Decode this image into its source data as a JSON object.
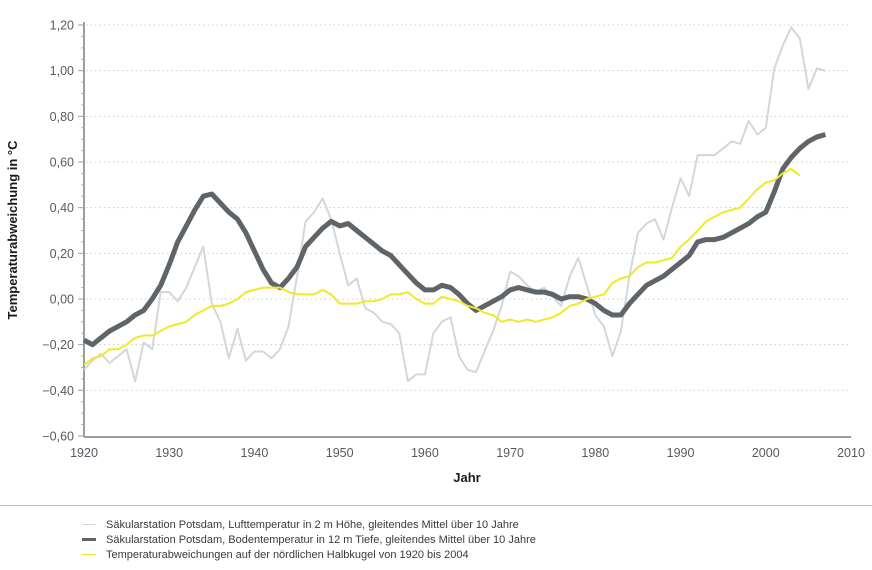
{
  "chart_data": {
    "type": "line",
    "title": "",
    "xlabel": "Jahr",
    "ylabel": "Temperaturabweichung in °C",
    "xlim": [
      1920,
      2010
    ],
    "ylim": [
      -0.6,
      1.2
    ],
    "grid": "horizontal-dotted",
    "legend_position": "bottom",
    "x_ticks": [
      "1920",
      "1930",
      "1940",
      "1950",
      "1960",
      "1970",
      "1980",
      "1990",
      "2000",
      "2010"
    ],
    "x_tick_values": [
      1920,
      1930,
      1940,
      1950,
      1960,
      1970,
      1980,
      1990,
      2000,
      2010
    ],
    "y_ticks": [
      "1,20",
      "1,00",
      "0,80",
      "0,60",
      "0,40",
      "0,20",
      "0,00",
      "−0,20",
      "−0,40",
      "−0,60"
    ],
    "y_tick_values": [
      1.2,
      1.0,
      0.8,
      0.6,
      0.4,
      0.2,
      0.0,
      -0.2,
      -0.4,
      -0.6
    ],
    "series": [
      {
        "name": "Säkularstation Potsdam, Lufttemperatur in 2 m Höhe, gleitendes Mittel über 10 Jahre",
        "color": "#d3d6da",
        "width": 2,
        "points": [
          [
            1920,
            -0.31
          ],
          [
            1921,
            -0.27
          ],
          [
            1922,
            -0.24
          ],
          [
            1923,
            -0.28
          ],
          [
            1924,
            -0.25
          ],
          [
            1925,
            -0.22
          ],
          [
            1926,
            -0.36
          ],
          [
            1927,
            -0.19
          ],
          [
            1928,
            -0.22
          ],
          [
            1929,
            0.03
          ],
          [
            1930,
            0.03
          ],
          [
            1931,
            -0.01
          ],
          [
            1932,
            0.05
          ],
          [
            1933,
            0.14
          ],
          [
            1934,
            0.23
          ],
          [
            1935,
            -0.02
          ],
          [
            1936,
            -0.1
          ],
          [
            1937,
            -0.26
          ],
          [
            1938,
            -0.13
          ],
          [
            1939,
            -0.27
          ],
          [
            1940,
            -0.23
          ],
          [
            1941,
            -0.23
          ],
          [
            1942,
            -0.26
          ],
          [
            1943,
            -0.22
          ],
          [
            1944,
            -0.12
          ],
          [
            1945,
            0.1
          ],
          [
            1946,
            0.34
          ],
          [
            1947,
            0.38
          ],
          [
            1948,
            0.44
          ],
          [
            1949,
            0.35
          ],
          [
            1950,
            0.2
          ],
          [
            1951,
            0.06
          ],
          [
            1952,
            0.09
          ],
          [
            1953,
            -0.04
          ],
          [
            1954,
            -0.06
          ],
          [
            1955,
            -0.1
          ],
          [
            1956,
            -0.11
          ],
          [
            1957,
            -0.15
          ],
          [
            1958,
            -0.36
          ],
          [
            1959,
            -0.33
          ],
          [
            1960,
            -0.33
          ],
          [
            1961,
            -0.15
          ],
          [
            1962,
            -0.1
          ],
          [
            1963,
            -0.08
          ],
          [
            1964,
            -0.25
          ],
          [
            1965,
            -0.31
          ],
          [
            1966,
            -0.32
          ],
          [
            1967,
            -0.23
          ],
          [
            1968,
            -0.14
          ],
          [
            1969,
            -0.03
          ],
          [
            1970,
            0.12
          ],
          [
            1971,
            0.1
          ],
          [
            1972,
            0.06
          ],
          [
            1973,
            0.03
          ],
          [
            1974,
            0.05
          ],
          [
            1975,
            0.01
          ],
          [
            1976,
            -0.03
          ],
          [
            1977,
            0.1
          ],
          [
            1978,
            0.18
          ],
          [
            1979,
            0.06
          ],
          [
            1980,
            -0.07
          ],
          [
            1981,
            -0.12
          ],
          [
            1982,
            -0.25
          ],
          [
            1983,
            -0.14
          ],
          [
            1984,
            0.1
          ],
          [
            1985,
            0.29
          ],
          [
            1986,
            0.33
          ],
          [
            1987,
            0.35
          ],
          [
            1988,
            0.26
          ],
          [
            1989,
            0.4
          ],
          [
            1990,
            0.53
          ],
          [
            1991,
            0.45
          ],
          [
            1992,
            0.63
          ],
          [
            1993,
            0.63
          ],
          [
            1994,
            0.63
          ],
          [
            1995,
            0.66
          ],
          [
            1996,
            0.69
          ],
          [
            1997,
            0.68
          ],
          [
            1998,
            0.78
          ],
          [
            1999,
            0.72
          ],
          [
            2000,
            0.75
          ],
          [
            2001,
            1.01
          ],
          [
            2002,
            1.11
          ],
          [
            2003,
            1.19
          ],
          [
            2004,
            1.14
          ],
          [
            2005,
            0.92
          ],
          [
            2006,
            1.01
          ],
          [
            2007,
            1.0
          ]
        ]
      },
      {
        "name": "Säkularstation Potsdam, Bodentemperatur in 12 m Tiefe, gleitendes Mittel über 10 Jahre",
        "color": "#5f6468",
        "width": 5,
        "points": [
          [
            1920,
            -0.18
          ],
          [
            1921,
            -0.2
          ],
          [
            1922,
            -0.17
          ],
          [
            1923,
            -0.14
          ],
          [
            1924,
            -0.12
          ],
          [
            1925,
            -0.1
          ],
          [
            1926,
            -0.07
          ],
          [
            1927,
            -0.05
          ],
          [
            1928,
            0.0
          ],
          [
            1929,
            0.06
          ],
          [
            1930,
            0.15
          ],
          [
            1931,
            0.25
          ],
          [
            1932,
            0.32
          ],
          [
            1933,
            0.39
          ],
          [
            1934,
            0.45
          ],
          [
            1935,
            0.46
          ],
          [
            1936,
            0.42
          ],
          [
            1937,
            0.38
          ],
          [
            1938,
            0.35
          ],
          [
            1939,
            0.29
          ],
          [
            1940,
            0.21
          ],
          [
            1941,
            0.13
          ],
          [
            1942,
            0.07
          ],
          [
            1943,
            0.05
          ],
          [
            1944,
            0.09
          ],
          [
            1945,
            0.14
          ],
          [
            1946,
            0.23
          ],
          [
            1947,
            0.27
          ],
          [
            1948,
            0.31
          ],
          [
            1949,
            0.34
          ],
          [
            1950,
            0.32
          ],
          [
            1951,
            0.33
          ],
          [
            1952,
            0.3
          ],
          [
            1953,
            0.27
          ],
          [
            1954,
            0.24
          ],
          [
            1955,
            0.21
          ],
          [
            1956,
            0.19
          ],
          [
            1957,
            0.15
          ],
          [
            1958,
            0.11
          ],
          [
            1959,
            0.07
          ],
          [
            1960,
            0.04
          ],
          [
            1961,
            0.04
          ],
          [
            1962,
            0.06
          ],
          [
            1963,
            0.05
          ],
          [
            1964,
            0.02
          ],
          [
            1965,
            -0.02
          ],
          [
            1966,
            -0.05
          ],
          [
            1967,
            -0.03
          ],
          [
            1968,
            -0.01
          ],
          [
            1969,
            0.01
          ],
          [
            1970,
            0.04
          ],
          [
            1971,
            0.05
          ],
          [
            1972,
            0.04
          ],
          [
            1973,
            0.03
          ],
          [
            1974,
            0.03
          ],
          [
            1975,
            0.02
          ],
          [
            1976,
            0.0
          ],
          [
            1977,
            0.01
          ],
          [
            1978,
            0.01
          ],
          [
            1979,
            0.0
          ],
          [
            1980,
            -0.02
          ],
          [
            1981,
            -0.05
          ],
          [
            1982,
            -0.07
          ],
          [
            1983,
            -0.07
          ],
          [
            1984,
            -0.02
          ],
          [
            1985,
            0.02
          ],
          [
            1986,
            0.06
          ],
          [
            1987,
            0.08
          ],
          [
            1988,
            0.1
          ],
          [
            1989,
            0.13
          ],
          [
            1990,
            0.16
          ],
          [
            1991,
            0.19
          ],
          [
            1992,
            0.25
          ],
          [
            1993,
            0.26
          ],
          [
            1994,
            0.26
          ],
          [
            1995,
            0.27
          ],
          [
            1996,
            0.29
          ],
          [
            1997,
            0.31
          ],
          [
            1998,
            0.33
          ],
          [
            1999,
            0.36
          ],
          [
            2000,
            0.38
          ],
          [
            2001,
            0.47
          ],
          [
            2002,
            0.57
          ],
          [
            2003,
            0.62
          ],
          [
            2004,
            0.66
          ],
          [
            2005,
            0.69
          ],
          [
            2006,
            0.71
          ],
          [
            2007,
            0.72
          ]
        ]
      },
      {
        "name": "Temperaturabweichungen auf der nördlichen Halbkugel von 1920 bis 2004",
        "color": "#f2e82a",
        "width": 2,
        "points": [
          [
            1920,
            -0.29
          ],
          [
            1921,
            -0.26
          ],
          [
            1922,
            -0.25
          ],
          [
            1923,
            -0.22
          ],
          [
            1924,
            -0.22
          ],
          [
            1925,
            -0.2
          ],
          [
            1926,
            -0.17
          ],
          [
            1927,
            -0.16
          ],
          [
            1928,
            -0.16
          ],
          [
            1929,
            -0.14
          ],
          [
            1930,
            -0.12
          ],
          [
            1931,
            -0.11
          ],
          [
            1932,
            -0.1
          ],
          [
            1933,
            -0.07
          ],
          [
            1934,
            -0.05
          ],
          [
            1935,
            -0.03
          ],
          [
            1936,
            -0.03
          ],
          [
            1937,
            -0.02
          ],
          [
            1938,
            0.0
          ],
          [
            1939,
            0.03
          ],
          [
            1940,
            0.04
          ],
          [
            1941,
            0.05
          ],
          [
            1942,
            0.05
          ],
          [
            1943,
            0.05
          ],
          [
            1944,
            0.03
          ],
          [
            1945,
            0.02
          ],
          [
            1946,
            0.02
          ],
          [
            1947,
            0.02
          ],
          [
            1948,
            0.04
          ],
          [
            1949,
            0.02
          ],
          [
            1950,
            -0.02
          ],
          [
            1951,
            -0.02
          ],
          [
            1952,
            -0.02
          ],
          [
            1953,
            -0.01
          ],
          [
            1954,
            -0.01
          ],
          [
            1955,
            0.0
          ],
          [
            1956,
            0.02
          ],
          [
            1957,
            0.02
          ],
          [
            1958,
            0.03
          ],
          [
            1959,
            0.0
          ],
          [
            1960,
            -0.02
          ],
          [
            1961,
            -0.02
          ],
          [
            1962,
            0.01
          ],
          [
            1963,
            0.0
          ],
          [
            1964,
            -0.01
          ],
          [
            1965,
            -0.03
          ],
          [
            1966,
            -0.04
          ],
          [
            1967,
            -0.06
          ],
          [
            1968,
            -0.07
          ],
          [
            1969,
            -0.1
          ],
          [
            1970,
            -0.09
          ],
          [
            1971,
            -0.1
          ],
          [
            1972,
            -0.09
          ],
          [
            1973,
            -0.1
          ],
          [
            1974,
            -0.09
          ],
          [
            1975,
            -0.08
          ],
          [
            1976,
            -0.06
          ],
          [
            1977,
            -0.03
          ],
          [
            1978,
            -0.02
          ],
          [
            1979,
            0.0
          ],
          [
            1980,
            0.01
          ],
          [
            1981,
            0.02
          ],
          [
            1982,
            0.07
          ],
          [
            1983,
            0.09
          ],
          [
            1984,
            0.1
          ],
          [
            1985,
            0.14
          ],
          [
            1986,
            0.16
          ],
          [
            1987,
            0.16
          ],
          [
            1988,
            0.17
          ],
          [
            1989,
            0.18
          ],
          [
            1990,
            0.23
          ],
          [
            1991,
            0.26
          ],
          [
            1992,
            0.3
          ],
          [
            1993,
            0.34
          ],
          [
            1994,
            0.36
          ],
          [
            1995,
            0.38
          ],
          [
            1996,
            0.39
          ],
          [
            1997,
            0.4
          ],
          [
            1998,
            0.44
          ],
          [
            1999,
            0.48
          ],
          [
            2000,
            0.51
          ],
          [
            2001,
            0.52
          ],
          [
            2002,
            0.55
          ],
          [
            2003,
            0.57
          ],
          [
            2004,
            0.54
          ]
        ]
      }
    ]
  }
}
